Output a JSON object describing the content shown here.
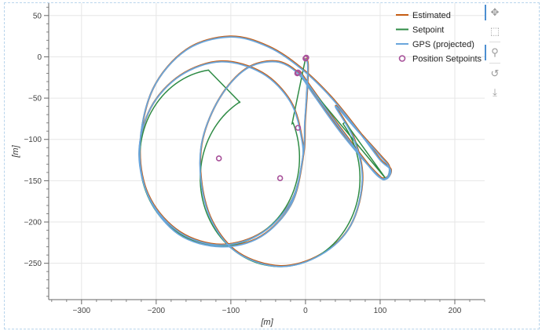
{
  "chart_data": {
    "type": "line",
    "xlabel": "[m]",
    "ylabel": "[m]",
    "xlim": [
      -344,
      240
    ],
    "ylim": [
      -294,
      65
    ],
    "xticks": [
      -300,
      -200,
      -100,
      0,
      100,
      200
    ],
    "yticks": [
      50,
      0,
      -50,
      -100,
      -150,
      -200,
      -250
    ],
    "grid": true,
    "legend_position": "top-right",
    "legend": [
      {
        "label": "Estimated",
        "color": "#c65d13",
        "kind": "line"
      },
      {
        "label": "Setpoint",
        "color": "#2e8b45",
        "kind": "line"
      },
      {
        "label": "GPS (projected)",
        "color": "#6aa6dc",
        "kind": "line"
      },
      {
        "label": "Position Setpoints",
        "color": "#a8529a",
        "kind": "circle"
      }
    ],
    "setpoint_path": [
      {
        "seg": "line",
        "points": [
          [
            0,
            -2
          ],
          [
            -18,
            -81
          ]
        ]
      },
      {
        "seg": "arc",
        "cx": -115,
        "cy": -122,
        "r": 107,
        "from_deg": 23,
        "to_deg": -262
      },
      {
        "seg": "line",
        "points": [
          [
            -129,
            -17
          ],
          [
            -88,
            -55
          ]
        ]
      },
      {
        "seg": "arc",
        "cx": -34,
        "cy": -147,
        "r": 107,
        "from_deg": 120,
        "to_deg": 398
      },
      {
        "seg": "line",
        "points": [
          [
            53,
            -79
          ],
          [
            108,
            -148
          ],
          [
            -10,
            -20
          ]
        ]
      }
    ],
    "gps_points": [
      [
        0,
        -2
      ],
      [
        3,
        -10
      ],
      [
        2,
        -40
      ],
      [
        -1,
        -80
      ],
      [
        -3,
        -118
      ],
      [
        -18,
        -173
      ],
      [
        -58,
        -213
      ],
      [
        -113,
        -228
      ],
      [
        -168,
        -213
      ],
      [
        -208,
        -173
      ],
      [
        -223,
        -118
      ],
      [
        -208,
        -63
      ],
      [
        -168,
        -23
      ],
      [
        -113,
        -6
      ],
      [
        -58,
        -20
      ],
      [
        -20,
        -55
      ],
      [
        -5,
        -100
      ],
      [
        -5,
        -130
      ],
      [
        -20,
        -180
      ],
      [
        -60,
        -218
      ],
      [
        -113,
        -230
      ],
      [
        -170,
        -215
      ],
      [
        -210,
        -170
      ],
      [
        -222,
        -110
      ],
      [
        -205,
        -40
      ],
      [
        -160,
        8
      ],
      [
        -102,
        24
      ],
      [
        -50,
        12
      ],
      [
        -5,
        -15
      ],
      [
        35,
        -50
      ],
      [
        75,
        -95
      ],
      [
        100,
        -125
      ],
      [
        114,
        -137
      ],
      [
        108,
        -148
      ],
      [
        95,
        -142
      ],
      [
        50,
        -95
      ],
      [
        10,
        -45
      ],
      [
        -10,
        -20
      ],
      [
        -40,
        -6
      ],
      [
        -80,
        -15
      ],
      [
        -115,
        -50
      ],
      [
        -138,
        -100
      ],
      [
        -140,
        -150
      ],
      [
        -125,
        -200
      ],
      [
        -90,
        -238
      ],
      [
        -34,
        -254
      ],
      [
        20,
        -240
      ],
      [
        60,
        -205
      ],
      [
        76,
        -150
      ],
      [
        65,
        -100
      ],
      [
        40,
        -60
      ],
      [
        70,
        -90
      ],
      [
        100,
        -120
      ],
      [
        112,
        -134
      ],
      [
        108,
        -147
      ],
      [
        92,
        -140
      ],
      [
        45,
        -85
      ],
      [
        5,
        -35
      ],
      [
        -8,
        -18
      ]
    ],
    "position_setpoints": [
      [
        0,
        -2
      ],
      [
        1,
        -1
      ],
      [
        -10,
        -19
      ],
      [
        -11,
        -20
      ],
      [
        -10,
        -86
      ],
      [
        -116,
        -123
      ],
      [
        -34,
        -147
      ]
    ]
  },
  "toolbar": {
    "tools": [
      {
        "name": "pan",
        "icon": "move-icon",
        "glyph": "✥",
        "active": true
      },
      {
        "name": "box-zoom",
        "icon": "box-zoom-icon",
        "glyph": "⬚",
        "active": false
      },
      {
        "name": "hover",
        "icon": "hover-icon",
        "glyph": "⚲",
        "active": true
      },
      {
        "name": "reset",
        "icon": "reset-icon",
        "glyph": "↺",
        "active": false
      },
      {
        "name": "save",
        "icon": "save-icon",
        "glyph": "⤓",
        "active": false
      }
    ]
  }
}
